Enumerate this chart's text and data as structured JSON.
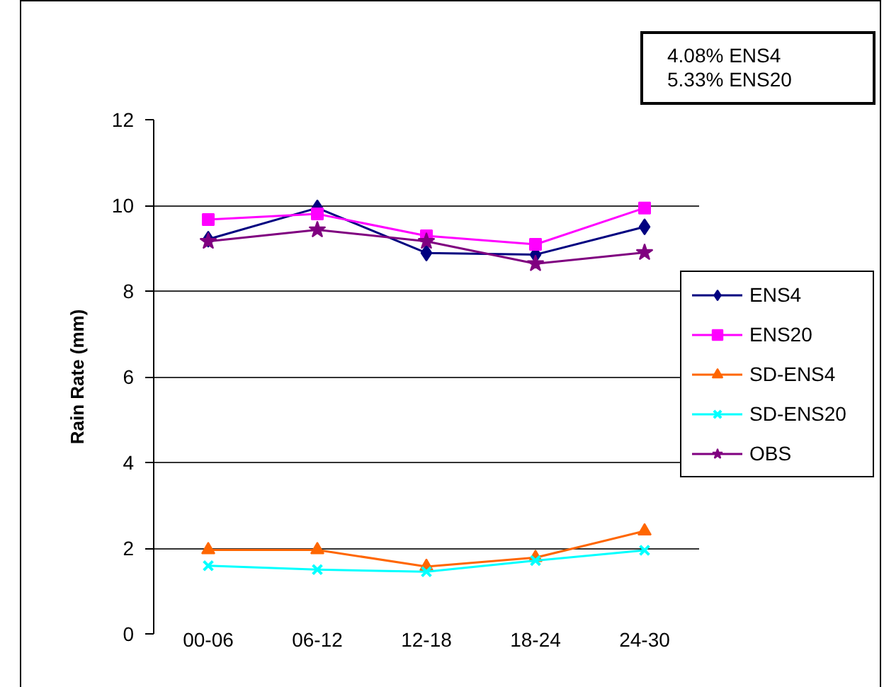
{
  "chart_data": {
    "type": "line",
    "ylabel": "Rain Rate (mm)",
    "categories": [
      "00-06",
      "06-12",
      "12-18",
      "18-24",
      "24-30"
    ],
    "ylim": [
      0,
      12
    ],
    "yticks": [
      0,
      2,
      4,
      6,
      8,
      10,
      12
    ],
    "grid": "y",
    "legend": "right",
    "annotations": [
      "4.08% ENS4\n5.33% ENS20"
    ],
    "series": [
      {
        "name": "ENS4",
        "color": "#000080",
        "marker": "diamond",
        "values": [
          9.21,
          9.94,
          8.89,
          8.85,
          9.5
        ]
      },
      {
        "name": "ENS20",
        "color": "#ff00ff",
        "marker": "square",
        "values": [
          9.67,
          9.8,
          9.29,
          9.09,
          9.94
        ]
      },
      {
        "name": "SD-ENS4",
        "color": "#ff6600",
        "marker": "triangle",
        "values": [
          1.96,
          1.96,
          1.57,
          1.78,
          2.4
        ]
      },
      {
        "name": "SD-ENS20",
        "color": "#00ffff",
        "marker": "cross",
        "values": [
          1.59,
          1.5,
          1.45,
          1.71,
          1.95
        ]
      },
      {
        "name": "OBS",
        "color": "#800080",
        "marker": "star",
        "values": [
          9.16,
          9.43,
          9.16,
          8.64,
          8.9
        ]
      }
    ]
  }
}
